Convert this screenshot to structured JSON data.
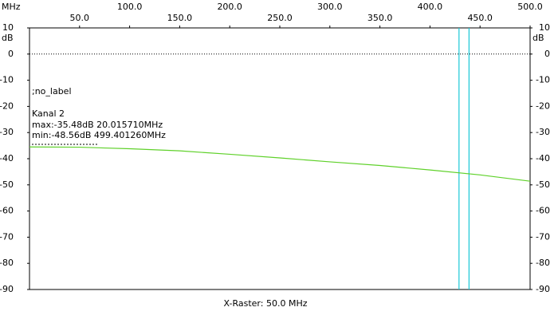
{
  "chart_data": {
    "type": "line",
    "x_label": "MHz",
    "y_label": "dB",
    "footer": "X-Raster: 50.0 MHz",
    "annotations": [
      ";no_label",
      "Kanal 2",
      "max:-35.48dB 20.015710MHz",
      "min:-48.56dB 499.401260MHz"
    ],
    "x": [
      0,
      50,
      100,
      150,
      200,
      250,
      300,
      350,
      400,
      450,
      500
    ],
    "series": [
      {
        "name": "Kanal 2",
        "color": "#5fd12a",
        "values": [
          -35.5,
          -35.6,
          -36.2,
          -37.0,
          -38.3,
          -39.7,
          -41.2,
          -42.6,
          -44.3,
          -46.2,
          -48.6
        ]
      }
    ],
    "cursors": [
      429,
      439
    ],
    "cursor_color": "#19c8d8",
    "xlim": [
      0,
      500
    ],
    "xticks": [
      {
        "value": 50,
        "label": "50.0"
      },
      {
        "value": 100,
        "label": "100.0"
      },
      {
        "value": 150,
        "label": "150.0"
      },
      {
        "value": 200,
        "label": "200.0"
      },
      {
        "value": 250,
        "label": "250.0"
      },
      {
        "value": 300,
        "label": "300.0"
      },
      {
        "value": 350,
        "label": "350.0"
      },
      {
        "value": 400,
        "label": "400.0"
      },
      {
        "value": 450,
        "label": "450.0"
      },
      {
        "value": 500,
        "label": "500.0"
      }
    ],
    "ylim": [
      -90,
      10
    ],
    "yticks": [
      10,
      0,
      -10,
      -20,
      -30,
      -40,
      -50,
      -60,
      -70,
      -80,
      -90
    ],
    "reference_line": 0
  }
}
